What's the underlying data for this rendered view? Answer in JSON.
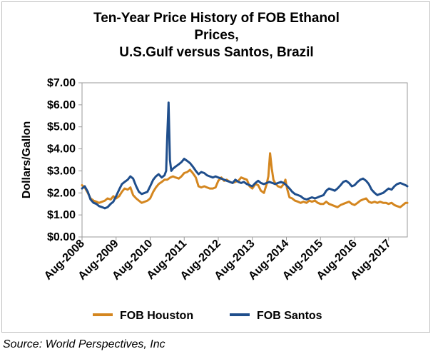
{
  "chart_data": {
    "type": "line",
    "title_lines": [
      "Ten-Year Price History of FOB Ethanol",
      "Prices,",
      "U.S.Gulf versus Santos, Brazil"
    ],
    "ylabel": "Dollars/Gallon",
    "xlabel": "",
    "ylim": [
      0,
      7
    ],
    "yticks": [
      "$0.00",
      "$1.00",
      "$2.00",
      "$3.00",
      "$4.00",
      "$5.00",
      "$6.00",
      "$7.00"
    ],
    "xlim": [
      2008.58,
      2018.13
    ],
    "xticks": [
      {
        "label": "Aug-2008",
        "x": 2008.58
      },
      {
        "label": "Aug-2009",
        "x": 2009.58
      },
      {
        "label": "Aug-2010",
        "x": 2010.58
      },
      {
        "label": "Aug-2011",
        "x": 2011.58
      },
      {
        "label": "Aug-2012",
        "x": 2012.58
      },
      {
        "label": "Aug-2013",
        "x": 2013.58
      },
      {
        "label": "Aug-2014",
        "x": 2014.58
      },
      {
        "label": "Aug-2015",
        "x": 2015.58
      },
      {
        "label": "Aug-2016",
        "x": 2016.58
      },
      {
        "label": "Aug-2017",
        "x": 2017.58
      }
    ],
    "legend_position": "bottom",
    "grid": false,
    "series": [
      {
        "name": "FOB Houston",
        "color": "#d4861f",
        "points": [
          [
            2008.58,
            2.35
          ],
          [
            2008.66,
            2.25
          ],
          [
            2008.75,
            2.0
          ],
          [
            2008.83,
            1.75
          ],
          [
            2008.92,
            1.65
          ],
          [
            2009.0,
            1.6
          ],
          [
            2009.08,
            1.55
          ],
          [
            2009.17,
            1.6
          ],
          [
            2009.25,
            1.65
          ],
          [
            2009.33,
            1.75
          ],
          [
            2009.42,
            1.7
          ],
          [
            2009.5,
            1.85
          ],
          [
            2009.58,
            1.75
          ],
          [
            2009.67,
            1.85
          ],
          [
            2009.75,
            2.05
          ],
          [
            2009.83,
            2.2
          ],
          [
            2009.92,
            2.15
          ],
          [
            2010.0,
            2.25
          ],
          [
            2010.08,
            1.9
          ],
          [
            2010.17,
            1.75
          ],
          [
            2010.25,
            1.65
          ],
          [
            2010.33,
            1.55
          ],
          [
            2010.42,
            1.6
          ],
          [
            2010.5,
            1.65
          ],
          [
            2010.58,
            1.75
          ],
          [
            2010.67,
            2.05
          ],
          [
            2010.75,
            2.25
          ],
          [
            2010.83,
            2.4
          ],
          [
            2010.92,
            2.5
          ],
          [
            2011.0,
            2.6
          ],
          [
            2011.08,
            2.6
          ],
          [
            2011.17,
            2.7
          ],
          [
            2011.25,
            2.75
          ],
          [
            2011.33,
            2.7
          ],
          [
            2011.42,
            2.65
          ],
          [
            2011.5,
            2.75
          ],
          [
            2011.58,
            2.9
          ],
          [
            2011.67,
            2.95
          ],
          [
            2011.75,
            3.05
          ],
          [
            2011.83,
            2.9
          ],
          [
            2011.92,
            2.7
          ],
          [
            2012.0,
            2.3
          ],
          [
            2012.08,
            2.25
          ],
          [
            2012.17,
            2.3
          ],
          [
            2012.25,
            2.25
          ],
          [
            2012.33,
            2.2
          ],
          [
            2012.42,
            2.2
          ],
          [
            2012.5,
            2.25
          ],
          [
            2012.58,
            2.55
          ],
          [
            2012.67,
            2.7
          ],
          [
            2012.75,
            2.55
          ],
          [
            2012.83,
            2.6
          ],
          [
            2012.92,
            2.5
          ],
          [
            2013.0,
            2.45
          ],
          [
            2013.08,
            2.5
          ],
          [
            2013.17,
            2.55
          ],
          [
            2013.25,
            2.7
          ],
          [
            2013.33,
            2.65
          ],
          [
            2013.42,
            2.6
          ],
          [
            2013.5,
            2.3
          ],
          [
            2013.58,
            2.2
          ],
          [
            2013.67,
            2.4
          ],
          [
            2013.75,
            2.35
          ],
          [
            2013.83,
            2.1
          ],
          [
            2013.92,
            2.0
          ],
          [
            2014.0,
            2.4
          ],
          [
            2014.05,
            2.75
          ],
          [
            2014.1,
            3.8
          ],
          [
            2014.15,
            3.1
          ],
          [
            2014.2,
            2.6
          ],
          [
            2014.25,
            2.45
          ],
          [
            2014.33,
            2.3
          ],
          [
            2014.42,
            2.25
          ],
          [
            2014.5,
            2.4
          ],
          [
            2014.55,
            2.6
          ],
          [
            2014.6,
            2.2
          ],
          [
            2014.67,
            1.8
          ],
          [
            2014.75,
            1.75
          ],
          [
            2014.83,
            1.65
          ],
          [
            2014.92,
            1.6
          ],
          [
            2015.0,
            1.55
          ],
          [
            2015.08,
            1.6
          ],
          [
            2015.17,
            1.55
          ],
          [
            2015.25,
            1.65
          ],
          [
            2015.33,
            1.6
          ],
          [
            2015.42,
            1.65
          ],
          [
            2015.5,
            1.55
          ],
          [
            2015.58,
            1.5
          ],
          [
            2015.67,
            1.5
          ],
          [
            2015.75,
            1.6
          ],
          [
            2015.83,
            1.5
          ],
          [
            2015.92,
            1.45
          ],
          [
            2016.0,
            1.4
          ],
          [
            2016.08,
            1.35
          ],
          [
            2016.17,
            1.45
          ],
          [
            2016.25,
            1.5
          ],
          [
            2016.33,
            1.55
          ],
          [
            2016.42,
            1.6
          ],
          [
            2016.5,
            1.5
          ],
          [
            2016.58,
            1.45
          ],
          [
            2016.67,
            1.55
          ],
          [
            2016.75,
            1.65
          ],
          [
            2016.83,
            1.7
          ],
          [
            2016.92,
            1.75
          ],
          [
            2017.0,
            1.6
          ],
          [
            2017.08,
            1.55
          ],
          [
            2017.17,
            1.6
          ],
          [
            2017.25,
            1.55
          ],
          [
            2017.33,
            1.6
          ],
          [
            2017.42,
            1.55
          ],
          [
            2017.5,
            1.55
          ],
          [
            2017.58,
            1.5
          ],
          [
            2017.67,
            1.55
          ],
          [
            2017.75,
            1.45
          ],
          [
            2017.83,
            1.4
          ],
          [
            2017.92,
            1.35
          ],
          [
            2018.0,
            1.45
          ],
          [
            2018.08,
            1.55
          ],
          [
            2018.13,
            1.55
          ]
        ]
      },
      {
        "name": "FOB Santos",
        "color": "#1f4e8c",
        "points": [
          [
            2008.58,
            2.2
          ],
          [
            2008.66,
            2.3
          ],
          [
            2008.75,
            2.05
          ],
          [
            2008.83,
            1.7
          ],
          [
            2008.92,
            1.55
          ],
          [
            2009.0,
            1.5
          ],
          [
            2009.08,
            1.4
          ],
          [
            2009.17,
            1.35
          ],
          [
            2009.25,
            1.3
          ],
          [
            2009.33,
            1.35
          ],
          [
            2009.42,
            1.5
          ],
          [
            2009.5,
            1.6
          ],
          [
            2009.58,
            1.85
          ],
          [
            2009.67,
            2.15
          ],
          [
            2009.75,
            2.4
          ],
          [
            2009.83,
            2.5
          ],
          [
            2009.92,
            2.6
          ],
          [
            2010.0,
            2.75
          ],
          [
            2010.08,
            2.65
          ],
          [
            2010.17,
            2.3
          ],
          [
            2010.25,
            2.05
          ],
          [
            2010.33,
            1.95
          ],
          [
            2010.42,
            2.0
          ],
          [
            2010.5,
            2.05
          ],
          [
            2010.58,
            2.3
          ],
          [
            2010.67,
            2.6
          ],
          [
            2010.75,
            2.75
          ],
          [
            2010.83,
            2.85
          ],
          [
            2010.92,
            2.7
          ],
          [
            2011.0,
            2.8
          ],
          [
            2011.05,
            3.0
          ],
          [
            2011.08,
            4.5
          ],
          [
            2011.12,
            6.1
          ],
          [
            2011.16,
            3.5
          ],
          [
            2011.2,
            3.0
          ],
          [
            2011.25,
            3.1
          ],
          [
            2011.33,
            3.2
          ],
          [
            2011.42,
            3.3
          ],
          [
            2011.5,
            3.4
          ],
          [
            2011.58,
            3.55
          ],
          [
            2011.67,
            3.45
          ],
          [
            2011.75,
            3.35
          ],
          [
            2011.83,
            3.2
          ],
          [
            2011.92,
            3.0
          ],
          [
            2012.0,
            2.85
          ],
          [
            2012.08,
            2.95
          ],
          [
            2012.17,
            2.9
          ],
          [
            2012.25,
            2.8
          ],
          [
            2012.33,
            2.75
          ],
          [
            2012.42,
            2.7
          ],
          [
            2012.5,
            2.75
          ],
          [
            2012.58,
            2.7
          ],
          [
            2012.67,
            2.65
          ],
          [
            2012.75,
            2.6
          ],
          [
            2012.83,
            2.55
          ],
          [
            2012.92,
            2.5
          ],
          [
            2013.0,
            2.45
          ],
          [
            2013.08,
            2.6
          ],
          [
            2013.17,
            2.5
          ],
          [
            2013.25,
            2.45
          ],
          [
            2013.33,
            2.5
          ],
          [
            2013.42,
            2.4
          ],
          [
            2013.5,
            2.35
          ],
          [
            2013.58,
            2.3
          ],
          [
            2013.67,
            2.45
          ],
          [
            2013.75,
            2.55
          ],
          [
            2013.83,
            2.45
          ],
          [
            2013.92,
            2.4
          ],
          [
            2014.0,
            2.45
          ],
          [
            2014.08,
            2.5
          ],
          [
            2014.17,
            2.45
          ],
          [
            2014.25,
            2.4
          ],
          [
            2014.33,
            2.45
          ],
          [
            2014.42,
            2.5
          ],
          [
            2014.5,
            2.45
          ],
          [
            2014.58,
            2.35
          ],
          [
            2014.67,
            2.2
          ],
          [
            2014.75,
            2.05
          ],
          [
            2014.83,
            1.95
          ],
          [
            2014.92,
            1.9
          ],
          [
            2015.0,
            1.85
          ],
          [
            2015.08,
            1.75
          ],
          [
            2015.17,
            1.7
          ],
          [
            2015.25,
            1.75
          ],
          [
            2015.33,
            1.8
          ],
          [
            2015.42,
            1.75
          ],
          [
            2015.5,
            1.8
          ],
          [
            2015.58,
            1.85
          ],
          [
            2015.67,
            1.9
          ],
          [
            2015.75,
            2.1
          ],
          [
            2015.83,
            2.2
          ],
          [
            2015.92,
            2.15
          ],
          [
            2016.0,
            2.1
          ],
          [
            2016.08,
            2.2
          ],
          [
            2016.17,
            2.35
          ],
          [
            2016.25,
            2.5
          ],
          [
            2016.33,
            2.55
          ],
          [
            2016.42,
            2.45
          ],
          [
            2016.5,
            2.3
          ],
          [
            2016.58,
            2.35
          ],
          [
            2016.67,
            2.5
          ],
          [
            2016.75,
            2.6
          ],
          [
            2016.83,
            2.65
          ],
          [
            2016.92,
            2.55
          ],
          [
            2017.0,
            2.4
          ],
          [
            2017.08,
            2.15
          ],
          [
            2017.17,
            2.0
          ],
          [
            2017.25,
            1.9
          ],
          [
            2017.33,
            1.95
          ],
          [
            2017.42,
            2.0
          ],
          [
            2017.5,
            2.1
          ],
          [
            2017.58,
            2.2
          ],
          [
            2017.67,
            2.15
          ],
          [
            2017.75,
            2.3
          ],
          [
            2017.83,
            2.4
          ],
          [
            2017.92,
            2.45
          ],
          [
            2018.0,
            2.4
          ],
          [
            2018.08,
            2.35
          ],
          [
            2018.13,
            2.3
          ]
        ]
      }
    ]
  },
  "source": "Source: World Perspectives, Inc"
}
